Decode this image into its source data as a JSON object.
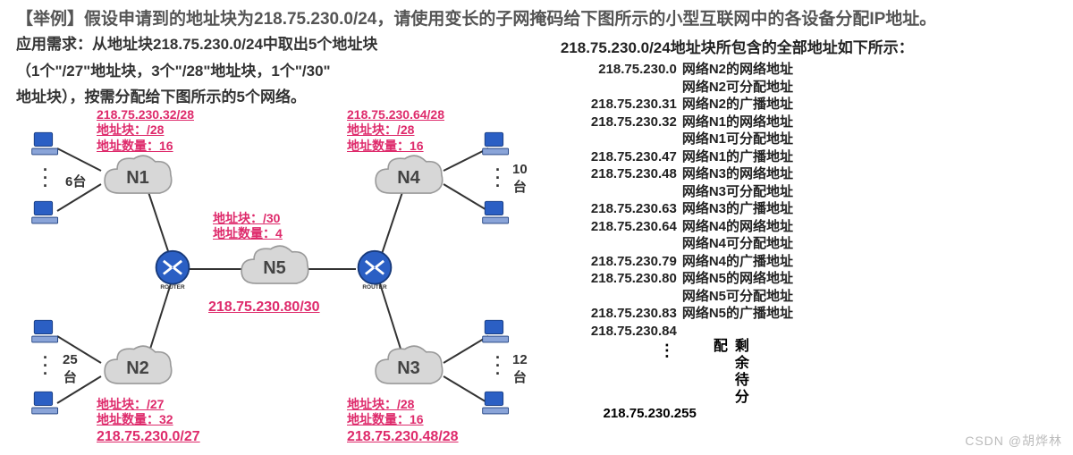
{
  "title": "【举例】假设申请到的地址块为218.75.230.0/24，请使用变长的子网掩码给下图所示的小型互联网中的各设备分配IP地址。",
  "requirement_lines": [
    "应用需求：从地址块218.75.230.0/24中取出5个地址块",
    "（1个\"/27\"地址块，3个\"/28\"地址块，1个\"/30\"",
    "地址块），按需分配给下图所示的5个网络。"
  ],
  "nets": {
    "n1": {
      "label": "N1",
      "cidr": "218.75.230.32/28",
      "block": "地址块：/28",
      "count": "地址数量：16",
      "hosts": "6台"
    },
    "n2": {
      "label": "N2",
      "cidr": "218.75.230.0/27",
      "block": "地址块：/27",
      "count": "地址数量：32",
      "hosts_a": "25",
      "hosts_b": "台"
    },
    "n3": {
      "label": "N3",
      "cidr": "218.75.230.48/28",
      "block": "地址块：/28",
      "count": "地址数量：16",
      "hosts_a": "12",
      "hosts_b": "台"
    },
    "n4": {
      "label": "N4",
      "cidr": "218.75.230.64/28",
      "block": "地址块：/28",
      "count": "地址数量：16",
      "hosts_a": "10",
      "hosts_b": "台"
    },
    "n5": {
      "label": "N5",
      "cidr": "218.75.230.80/30",
      "block": "地址块：/30",
      "count": "地址数量：4"
    }
  },
  "right_title": "218.75.230.0/24地址块所包含的全部地址如下所示：",
  "addr_rows": [
    {
      "ip": "218.75.230.0",
      "desc": "网络N2的网络地址"
    },
    {
      "ip": "",
      "desc": "网络N2可分配地址"
    },
    {
      "ip": "218.75.230.31",
      "desc": "网络N2的广播地址"
    },
    {
      "ip": "218.75.230.32",
      "desc": "网络N1的网络地址"
    },
    {
      "ip": "",
      "desc": "网络N1可分配地址"
    },
    {
      "ip": "218.75.230.47",
      "desc": "网络N1的广播地址"
    },
    {
      "ip": "218.75.230.48",
      "desc": "网络N3的网络地址"
    },
    {
      "ip": "",
      "desc": "网络N3可分配地址"
    },
    {
      "ip": "218.75.230.63",
      "desc": "网络N3的广播地址"
    },
    {
      "ip": "218.75.230.64",
      "desc": "网络N4的网络地址"
    },
    {
      "ip": "",
      "desc": "网络N4可分配地址"
    },
    {
      "ip": "218.75.230.79",
      "desc": "网络N4的广播地址"
    },
    {
      "ip": "218.75.230.80",
      "desc": "网络N5的网络地址"
    },
    {
      "ip": "",
      "desc": "网络N5可分配地址"
    },
    {
      "ip": "218.75.230.83",
      "desc": "网络N5的广播地址"
    },
    {
      "ip": "218.75.230.84",
      "desc": ""
    }
  ],
  "last_ip": "218.75.230.255",
  "remain": "剩余待分配",
  "watermark": "CSDN @胡烨林",
  "colors": {
    "pink": "#de2a6b",
    "cloud_fill": "#d7d7d7",
    "cloud_stroke": "#9a9a9a",
    "router": "#2b5fc4",
    "pc": "#2b5fc4"
  }
}
